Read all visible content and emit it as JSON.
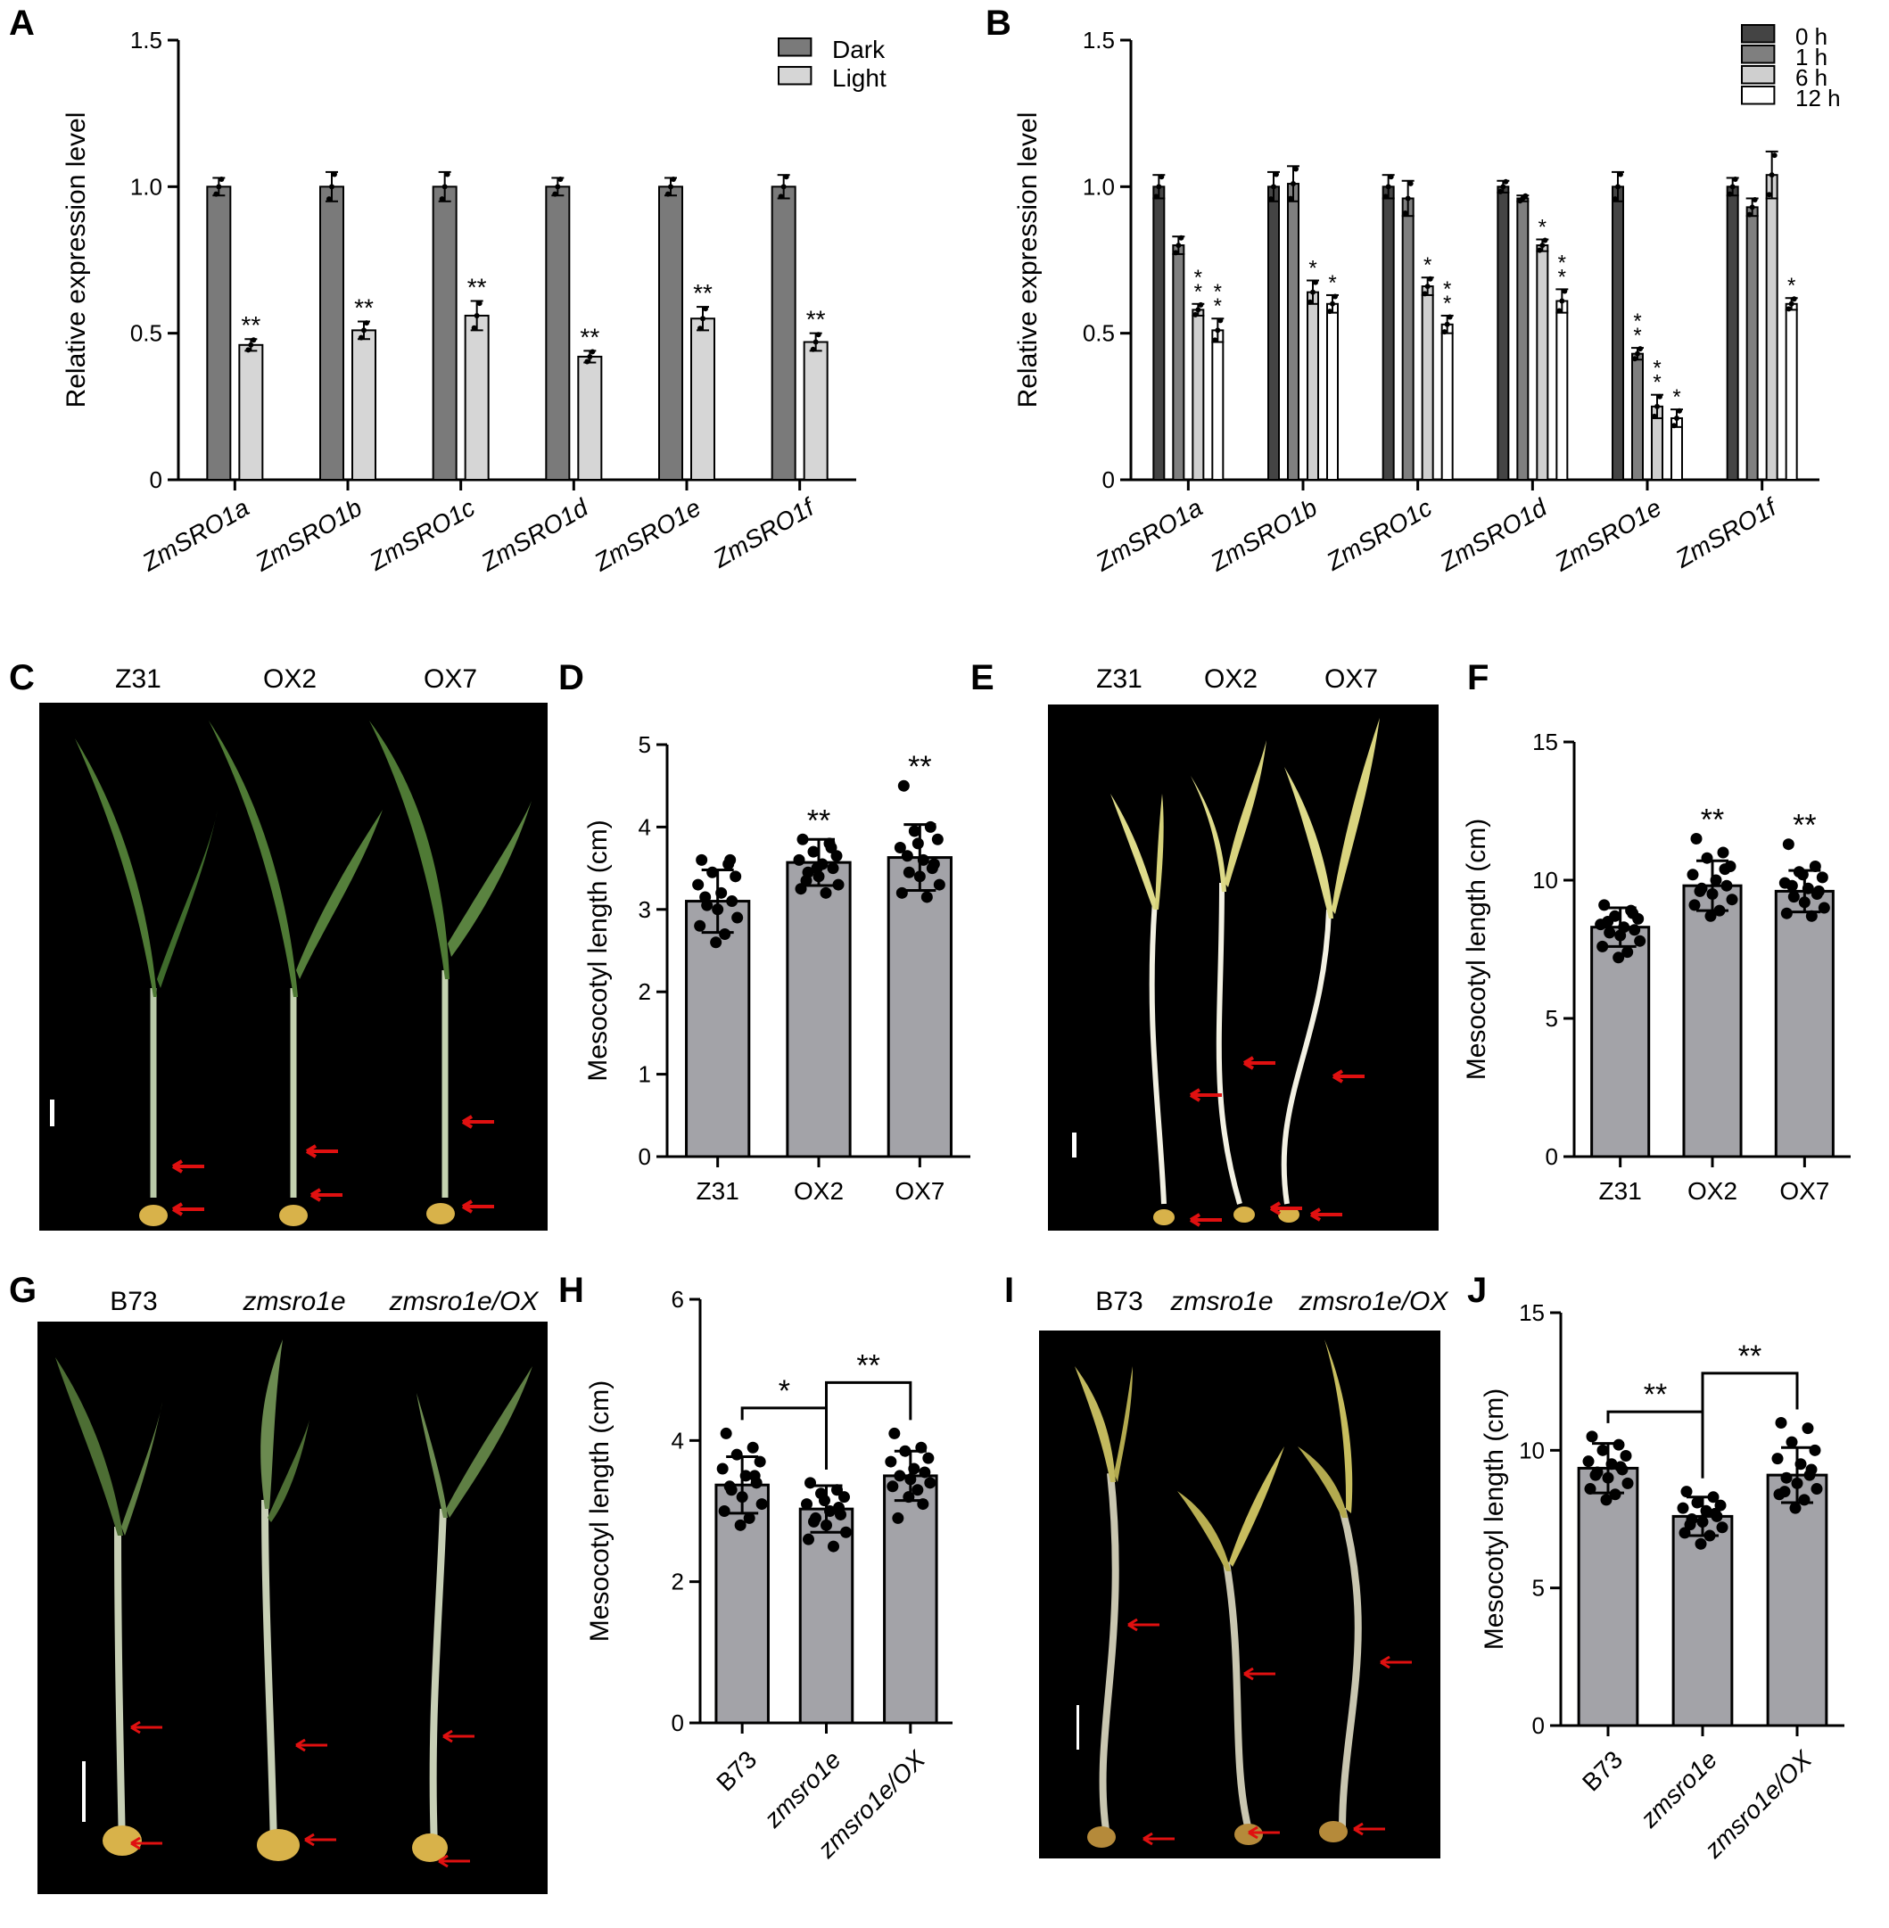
{
  "panels": {
    "A": "A",
    "B": "B",
    "C": "C",
    "D": "D",
    "E": "E",
    "F": "F",
    "G": "G",
    "H": "H",
    "I": "I",
    "J": "J"
  },
  "photos": {
    "C": {
      "labels": [
        "Z31",
        "OX2",
        "OX7"
      ],
      "italic": [
        false,
        false,
        false
      ]
    },
    "E": {
      "labels": [
        "Z31",
        "OX2",
        "OX7"
      ],
      "italic": [
        false,
        false,
        false
      ]
    },
    "G": {
      "labels": [
        "B73",
        "zmsro1e",
        "zmsro1e/OX"
      ],
      "italic": [
        false,
        true,
        true
      ]
    },
    "I": {
      "labels": [
        "B73",
        "zmsro1e",
        "zmsro1e/OX"
      ],
      "italic": [
        false,
        true,
        true
      ]
    }
  },
  "colors": {
    "dark_bar": "#7a7a7a",
    "light_bar": "#d6d6d6",
    "h0": "#444444",
    "h1": "#7f7f7f",
    "h6": "#cfcfcf",
    "h12": "#ffffff",
    "mesocotyl_bar": "#a3a3a8",
    "arrow": "#e01010",
    "dark_leaf": "#4f7a35",
    "etiolated_leaf": "#dedb8a"
  },
  "chart_data": [
    {
      "id": "A",
      "type": "bar",
      "ylabel": "Relative expression level",
      "ylim": [
        0,
        1.5
      ],
      "yticks": [
        "0",
        "0.5",
        "1.0",
        "1.5"
      ],
      "categories": [
        "ZmSRO1a",
        "ZmSRO1b",
        "ZmSRO1c",
        "ZmSRO1d",
        "ZmSRO1e",
        "ZmSRO1f"
      ],
      "series": [
        {
          "name": "Dark",
          "values": [
            1.0,
            1.0,
            1.0,
            1.0,
            1.0,
            1.0
          ],
          "err": [
            0.03,
            0.05,
            0.05,
            0.03,
            0.03,
            0.04
          ],
          "sig": [
            "",
            "",
            "",
            "",
            "",
            ""
          ]
        },
        {
          "name": "Light",
          "values": [
            0.46,
            0.51,
            0.56,
            0.42,
            0.55,
            0.47
          ],
          "err": [
            0.02,
            0.03,
            0.05,
            0.02,
            0.04,
            0.03
          ],
          "sig": [
            "**",
            "**",
            "**",
            "**",
            "**",
            "**"
          ]
        }
      ],
      "legend": "top-right"
    },
    {
      "id": "B",
      "type": "bar",
      "ylabel": "Relative expression level",
      "ylim": [
        0,
        1.5
      ],
      "yticks": [
        "0",
        "0.5",
        "1.0",
        "1.5"
      ],
      "categories": [
        "ZmSRO1a",
        "ZmSRO1b",
        "ZmSRO1c",
        "ZmSRO1d",
        "ZmSRO1e",
        "ZmSRO1f"
      ],
      "series": [
        {
          "name": "0 h",
          "values": [
            1.0,
            1.0,
            1.0,
            1.0,
            1.0,
            1.0
          ],
          "err": [
            0.04,
            0.05,
            0.04,
            0.02,
            0.05,
            0.03
          ],
          "sig": [
            "",
            "",
            "",
            "",
            "",
            ""
          ]
        },
        {
          "name": "1 h",
          "values": [
            0.8,
            1.01,
            0.96,
            0.96,
            0.43,
            0.93
          ],
          "err": [
            0.03,
            0.06,
            0.06,
            0.01,
            0.02,
            0.03
          ],
          "sig": [
            "",
            "",
            "",
            "",
            "**",
            ""
          ]
        },
        {
          "name": "6 h",
          "values": [
            0.58,
            0.64,
            0.66,
            0.8,
            0.25,
            1.04
          ],
          "err": [
            0.02,
            0.04,
            0.03,
            0.02,
            0.04,
            0.08
          ],
          "sig": [
            "**",
            "*",
            "*",
            "*",
            "**",
            ""
          ]
        },
        {
          "name": "12 h",
          "values": [
            0.51,
            0.6,
            0.53,
            0.61,
            0.21,
            0.6
          ],
          "err": [
            0.04,
            0.03,
            0.03,
            0.04,
            0.03,
            0.02
          ],
          "sig": [
            "**",
            "*",
            "**",
            "**",
            "*",
            "*"
          ]
        }
      ],
      "legend": "top-right"
    },
    {
      "id": "D",
      "type": "bar",
      "ylabel": "Mesocotyl length (cm)",
      "ylim": [
        0,
        5
      ],
      "yticks": [
        "0",
        "1",
        "2",
        "3",
        "4",
        "5"
      ],
      "categories": [
        "Z31",
        "OX2",
        "OX7"
      ],
      "values": [
        3.1,
        3.57,
        3.63
      ],
      "err": [
        0.38,
        0.28,
        0.4
      ],
      "sig": [
        "",
        "**",
        "**"
      ],
      "points": [
        [
          3.6,
          3.55,
          3.45,
          3.4,
          3.3,
          3.2,
          3.1,
          3.05,
          3.0,
          2.9,
          2.8,
          2.7,
          2.6,
          3.6,
          3.15
        ],
        [
          3.85,
          3.8,
          3.7,
          3.65,
          3.6,
          3.55,
          3.5,
          3.45,
          3.4,
          3.3,
          3.25,
          3.2,
          3.5,
          3.75,
          3.35
        ],
        [
          4.5,
          4.0,
          3.95,
          3.85,
          3.75,
          3.6,
          3.55,
          3.45,
          3.4,
          3.3,
          3.2,
          3.15,
          3.8,
          3.5,
          3.65
        ]
      ]
    },
    {
      "id": "F",
      "type": "bar",
      "ylabel": "Mesocotyl length (cm)",
      "ylim": [
        0,
        15
      ],
      "yticks": [
        "0",
        "5",
        "10",
        "15"
      ],
      "categories": [
        "Z31",
        "OX2",
        "OX7"
      ],
      "values": [
        8.3,
        9.8,
        9.6
      ],
      "err": [
        0.7,
        0.9,
        0.75
      ],
      "sig": [
        "",
        "**",
        "**"
      ],
      "points": [
        [
          9.1,
          8.9,
          8.7,
          8.6,
          8.4,
          8.3,
          8.2,
          8.1,
          8.0,
          7.8,
          7.6,
          7.4,
          7.2,
          8.8,
          8.5
        ],
        [
          11.5,
          11.0,
          10.8,
          10.5,
          10.2,
          10.0,
          9.8,
          9.7,
          9.5,
          9.3,
          9.1,
          8.9,
          8.7,
          10.4,
          9.6
        ],
        [
          11.3,
          10.5,
          10.3,
          10.1,
          9.9,
          9.7,
          9.6,
          9.4,
          9.2,
          9.0,
          8.8,
          8.7,
          10.2,
          9.5,
          9.8
        ]
      ]
    },
    {
      "id": "H",
      "type": "bar",
      "ylabel": "Mesocotyl length (cm)",
      "ylim": [
        0,
        6
      ],
      "yticks": [
        "0",
        "2",
        "4",
        "6"
      ],
      "categories": [
        "B73",
        "zmsro1e",
        "zmsro1e/OX"
      ],
      "italic": [
        false,
        true,
        true
      ],
      "values": [
        3.37,
        3.03,
        3.5
      ],
      "err": [
        0.4,
        0.33,
        0.35
      ],
      "brackets": [
        {
          "from": 0,
          "to": 1,
          "label": "*"
        },
        {
          "from": 1,
          "to": 2,
          "label": "**"
        }
      ],
      "points": [
        [
          4.1,
          3.9,
          3.8,
          3.7,
          3.6,
          3.5,
          3.4,
          3.3,
          3.2,
          3.1,
          3.0,
          2.9,
          2.8,
          3.5,
          3.35
        ],
        [
          3.4,
          3.3,
          3.25,
          3.2,
          3.1,
          3.0,
          2.95,
          2.9,
          2.8,
          2.7,
          2.6,
          2.5,
          3.15,
          3.05,
          2.85
        ],
        [
          4.1,
          3.9,
          3.85,
          3.75,
          3.7,
          3.6,
          3.55,
          3.5,
          3.45,
          3.4,
          3.35,
          3.3,
          3.2,
          3.1,
          2.9
        ]
      ]
    },
    {
      "id": "J",
      "type": "bar",
      "ylabel": "Mesocotyl length (cm)",
      "ylim": [
        0,
        15
      ],
      "yticks": [
        "0",
        "5",
        "10",
        "15"
      ],
      "categories": [
        "B73",
        "zmsro1e",
        "zmsro1e/OX"
      ],
      "italic": [
        false,
        true,
        true
      ],
      "values": [
        9.35,
        7.6,
        9.1
      ],
      "err": [
        0.9,
        0.7,
        1.0
      ],
      "brackets": [
        {
          "from": 0,
          "to": 1,
          "label": "**"
        },
        {
          "from": 1,
          "to": 2,
          "label": "**"
        }
      ],
      "points": [
        [
          10.5,
          10.2,
          10.0,
          9.8,
          9.6,
          9.5,
          9.3,
          9.2,
          9.0,
          8.8,
          8.6,
          8.4,
          8.2,
          9.4,
          9.1
        ],
        [
          8.5,
          8.3,
          8.1,
          8.0,
          7.9,
          7.8,
          7.6,
          7.5,
          7.4,
          7.2,
          7.0,
          6.9,
          6.6,
          7.7,
          7.3
        ],
        [
          11.0,
          10.8,
          10.3,
          10.0,
          9.7,
          9.5,
          9.3,
          9.0,
          8.8,
          8.6,
          8.4,
          8.2,
          7.9,
          9.1,
          8.5
        ]
      ]
    }
  ]
}
